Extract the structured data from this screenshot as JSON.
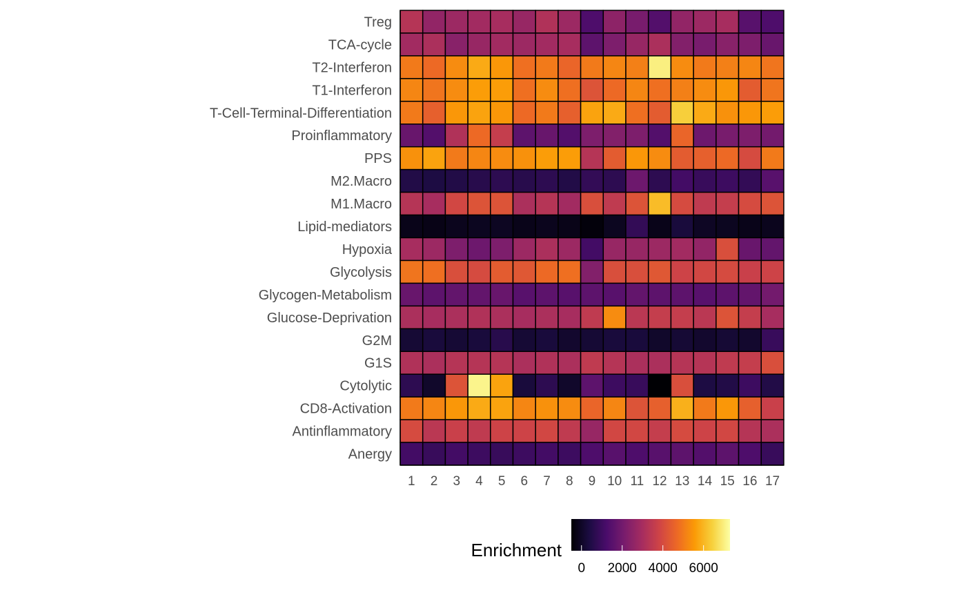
{
  "chart_data": {
    "type": "heatmap",
    "title": "",
    "xlabel": "",
    "ylabel": "",
    "x_categories": [
      "1",
      "2",
      "3",
      "4",
      "5",
      "6",
      "7",
      "8",
      "9",
      "10",
      "11",
      "12",
      "13",
      "14",
      "15",
      "16",
      "17"
    ],
    "y_categories": [
      "Treg",
      "TCA-cycle",
      "T2-Interferon",
      "T1-Interferon",
      "T-Cell-Terminal-Differentiation",
      "Proinflammatory",
      "PPS",
      "M2.Macro",
      "M1.Macro",
      "Lipid-mediators",
      "Hypoxia",
      "Glycolysis",
      "Glycogen-Metabolism",
      "Glucose-Deprivation",
      "G2M",
      "G1S",
      "Cytolytic",
      "CD8-Activation",
      "Antinflammatory",
      "Anergy"
    ],
    "values": [
      [
        3300,
        2600,
        2800,
        2900,
        3000,
        2700,
        3200,
        2800,
        1300,
        2500,
        2100,
        1400,
        2600,
        2800,
        3000,
        1500,
        1300
      ],
      [
        2900,
        3100,
        2400,
        2700,
        2900,
        2800,
        2900,
        3000,
        1600,
        2200,
        2700,
        3100,
        2300,
        2100,
        2400,
        2200,
        1800
      ],
      [
        5000,
        4700,
        5300,
        5800,
        5500,
        4800,
        5000,
        4600,
        5000,
        5200,
        5100,
        7000,
        5300,
        5000,
        5100,
        5200,
        4900
      ],
      [
        5200,
        4900,
        5300,
        5600,
        5600,
        4800,
        5300,
        4800,
        4200,
        4700,
        5200,
        4800,
        5100,
        5300,
        5500,
        4400,
        4900
      ],
      [
        5000,
        4500,
        5500,
        5700,
        5500,
        4700,
        5000,
        4500,
        5700,
        5800,
        4800,
        4400,
        6400,
        5800,
        5400,
        5500,
        5600
      ],
      [
        1800,
        1400,
        3200,
        4700,
        3600,
        1600,
        1800,
        1400,
        2200,
        2300,
        2200,
        1400,
        4600,
        1900,
        2100,
        2200,
        2000
      ],
      [
        5400,
        5700,
        5000,
        5200,
        5300,
        5400,
        5600,
        5600,
        3300,
        4400,
        5500,
        5300,
        4400,
        4500,
        4700,
        4000,
        5000
      ],
      [
        500,
        400,
        500,
        600,
        700,
        600,
        700,
        500,
        800,
        700,
        1900,
        700,
        1100,
        900,
        1000,
        800,
        1500
      ],
      [
        3300,
        3000,
        3900,
        4200,
        4200,
        3100,
        3300,
        2900,
        4100,
        3500,
        4200,
        6100,
        4000,
        3500,
        3600,
        4000,
        4200
      ],
      [
        -200,
        -250,
        -150,
        -100,
        -80,
        -200,
        -150,
        -220,
        -400,
        -100,
        800,
        -200,
        300,
        -50,
        -100,
        -200,
        -150
      ],
      [
        3000,
        2800,
        2200,
        1900,
        2200,
        2800,
        3100,
        2800,
        1100,
        2700,
        2700,
        2800,
        2900,
        2600,
        4100,
        1800,
        1700
      ],
      [
        4900,
        4800,
        4100,
        4000,
        4400,
        4300,
        4700,
        4800,
        2300,
        4100,
        4100,
        4300,
        3800,
        3900,
        4000,
        3700,
        3800
      ],
      [
        1800,
        1600,
        1700,
        1700,
        1800,
        1500,
        1600,
        1500,
        1600,
        1500,
        1700,
        1600,
        1600,
        1500,
        1600,
        1700,
        2000
      ],
      [
        3100,
        3000,
        3100,
        3200,
        3100,
        3000,
        3100,
        3000,
        3500,
        5300,
        3400,
        3600,
        3600,
        3400,
        4200,
        3600,
        3000
      ],
      [
        200,
        300,
        200,
        300,
        600,
        200,
        300,
        100,
        200,
        300,
        300,
        50,
        200,
        100,
        200,
        100,
        900
      ],
      [
        3200,
        3100,
        3300,
        3300,
        3300,
        3100,
        3200,
        3100,
        3500,
        3300,
        3100,
        3100,
        3300,
        3300,
        3500,
        3600,
        4100
      ],
      [
        700,
        50,
        4200,
        7100,
        5700,
        300,
        700,
        50,
        1600,
        1000,
        900,
        -500,
        4100,
        400,
        500,
        1000,
        500
      ],
      [
        5000,
        5200,
        5500,
        5800,
        5700,
        5200,
        5400,
        5300,
        4600,
        5200,
        4200,
        4500,
        5900,
        5000,
        5500,
        4500,
        3700
      ],
      [
        4000,
        3400,
        3700,
        3500,
        3800,
        3800,
        3900,
        3500,
        2700,
        3900,
        3900,
        3600,
        4000,
        3800,
        3900,
        3300,
        3100
      ],
      [
        1100,
        900,
        1100,
        1000,
        900,
        1000,
        1100,
        1000,
        1300,
        1500,
        1300,
        1500,
        1600,
        1400,
        1600,
        1300,
        900
      ]
    ],
    "color_scale": {
      "name": "inferno",
      "domain": [
        -500,
        7300
      ],
      "stops": [
        "#000004",
        "#1b0c41",
        "#4a0c6b",
        "#781c6d",
        "#a52c60",
        "#cf4446",
        "#ed6925",
        "#fb9b06",
        "#f7d13d",
        "#fcffa4"
      ]
    },
    "legend": {
      "title": "Enrichment",
      "ticks": [
        0,
        2000,
        4000,
        6000
      ],
      "tick_labels": [
        "0",
        "2000",
        "4000",
        "6000"
      ],
      "position": "bottom"
    },
    "grid": false
  }
}
